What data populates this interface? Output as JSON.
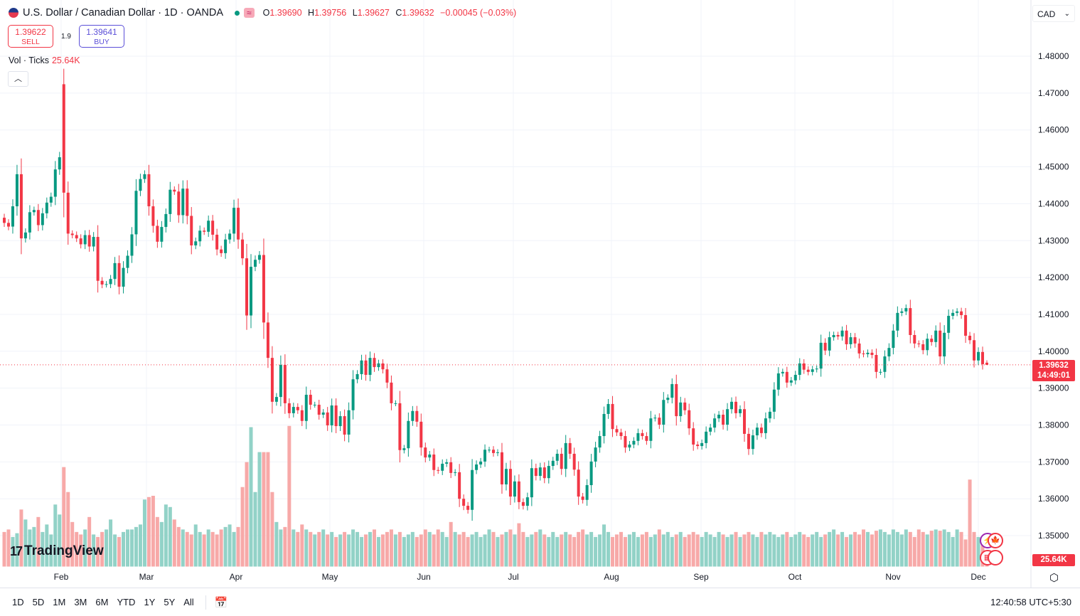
{
  "header": {
    "title": "U.S. Dollar / Canadian Dollar · 1D · OANDA",
    "status_icon": "market-open-dot",
    "delay_icon": "≈",
    "open_label": "O",
    "open": "1.39690",
    "high_label": "H",
    "high": "1.39756",
    "low_label": "L",
    "low": "1.39627",
    "close_label": "C",
    "close": "1.39632",
    "change": "−0.00045 (−0.03%)"
  },
  "trade": {
    "sell_price": "1.39622",
    "sell_label": "SELL",
    "spread": "1.9",
    "buy_price": "1.39641",
    "buy_label": "BUY"
  },
  "volume_legend": {
    "label": "Vol · Ticks",
    "value": "25.64K"
  },
  "currency": "CAD",
  "price_axis": {
    "ticks": [
      "1.48000",
      "1.47000",
      "1.46000",
      "1.45000",
      "1.44000",
      "1.43000",
      "1.42000",
      "1.41000",
      "1.40000",
      "1.39000",
      "1.38000",
      "1.37000",
      "1.36000",
      "1.35000"
    ],
    "last_price": "1.39632",
    "countdown": "14:49:01",
    "volume_tag": "25.64K"
  },
  "time_axis": [
    "Feb",
    "Mar",
    "Apr",
    "May",
    "Jun",
    "Jul",
    "Aug",
    "Sep",
    "Oct",
    "Nov",
    "Dec"
  ],
  "logo": "TradingView",
  "toolbar": {
    "ranges": [
      "1D",
      "5D",
      "1M",
      "3M",
      "6M",
      "YTD",
      "1Y",
      "5Y",
      "All"
    ],
    "clock": "12:40:58 UTC+5:30"
  },
  "colors": {
    "up": "#089981",
    "down": "#f23645",
    "up_volume": "#92d2c7",
    "down_volume": "#f7a9a8"
  },
  "chart_data": {
    "type": "candlestick",
    "interval": "1D",
    "symbol": "USDCAD",
    "ylim": [
      1.345,
      1.482
    ],
    "grid": true,
    "opens": {
      "0": 1.4362,
      "14": 1.4724
    },
    "close": [
      1.4348,
      1.4338,
      1.4393,
      1.448,
      1.4306,
      1.4322,
      1.4377,
      1.4383,
      1.4342,
      1.4374,
      1.4403,
      1.4419,
      1.4493,
      1.4526,
      1.443,
      1.4319,
      1.4315,
      1.4306,
      1.429,
      1.4315,
      1.4284,
      1.431,
      1.4191,
      1.4181,
      1.4182,
      1.4196,
      1.4239,
      1.4175,
      1.4226,
      1.4259,
      1.4317,
      1.4435,
      1.4467,
      1.448,
      1.4393,
      1.434,
      1.4297,
      1.4337,
      1.4372,
      1.4438,
      1.4433,
      1.4369,
      1.4441,
      1.4367,
      1.4287,
      1.4298,
      1.4327,
      1.4324,
      1.4354,
      1.4316,
      1.4276,
      1.4266,
      1.4303,
      1.4319,
      1.4389,
      1.4303,
      1.4252,
      1.4097,
      1.4229,
      1.4248,
      1.4261,
      1.4078,
      1.3982,
      1.3863,
      1.3876,
      1.3963,
      1.3859,
      1.3832,
      1.3849,
      1.384,
      1.3811,
      1.3882,
      1.3855,
      1.3855,
      1.3828,
      1.3834,
      1.3799,
      1.3853,
      1.3797,
      1.3824,
      1.3774,
      1.384,
      1.3924,
      1.3938,
      1.3975,
      1.3936,
      1.3982,
      1.3957,
      1.3967,
      1.3951,
      1.3915,
      1.3859,
      1.3859,
      1.3732,
      1.3737,
      1.3811,
      1.3838,
      1.3809,
      1.3739,
      1.3712,
      1.372,
      1.3678,
      1.3676,
      1.3695,
      1.3699,
      1.367,
      1.3672,
      1.36,
      1.3581,
      1.357,
      1.3678,
      1.3693,
      1.3701,
      1.3733,
      1.3733,
      1.3724,
      1.3726,
      1.3639,
      1.3681,
      1.3606,
      1.3647,
      1.3591,
      1.3581,
      1.3604,
      1.3683,
      1.3662,
      1.3685,
      1.3656,
      1.3689,
      1.3703,
      1.3722,
      1.3681,
      1.3751,
      1.3722,
      1.3679,
      1.3606,
      1.3597,
      1.3637,
      1.3701,
      1.3739,
      1.377,
      1.383,
      1.3857,
      1.3789,
      1.378,
      1.377,
      1.3739,
      1.3747,
      1.3757,
      1.3778,
      1.377,
      1.3757,
      1.3818,
      1.382,
      1.3801,
      1.3868,
      1.3874,
      1.3911,
      1.3824,
      1.3861,
      1.384,
      1.3791,
      1.3747,
      1.3743,
      1.3751,
      1.3782,
      1.3793,
      1.3818,
      1.3828,
      1.3801,
      1.3843,
      1.3863,
      1.3832,
      1.3843,
      1.3776,
      1.3735,
      1.3772,
      1.3793,
      1.3778,
      1.3818,
      1.3836,
      1.3896,
      1.394,
      1.3944,
      1.3915,
      1.3921,
      1.3936,
      1.3967,
      1.395,
      1.3944,
      1.3951,
      1.3953,
      1.4023,
      1.4002,
      1.4038,
      1.4044,
      1.404,
      1.4056,
      1.4019,
      1.4038,
      1.4021,
      1.3994,
      1.3992,
      1.3996,
      1.399,
      1.3944,
      1.3944,
      1.3986,
      1.4009,
      1.4056,
      1.4104,
      1.4108,
      1.4117,
      1.4044,
      1.4021,
      1.4019,
      1.4003,
      1.4034,
      1.4025,
      1.4056,
      1.3986,
      1.405,
      1.4096,
      1.4104,
      1.4108,
      1.4098,
      1.4042,
      1.403,
      1.3975,
      1.3998,
      1.3965,
      1.39632
    ],
    "volume_k": [
      140,
      150,
      120,
      135,
      230,
      190,
      150,
      160,
      200,
      140,
      170,
      130,
      250,
      210,
      400,
      300,
      180,
      140,
      130,
      150,
      200,
      130,
      120,
      140,
      150,
      190,
      130,
      120,
      140,
      150,
      150,
      160,
      170,
      270,
      280,
      285,
      200,
      180,
      250,
      240,
      190,
      160,
      150,
      140,
      130,
      170,
      140,
      130,
      150,
      140,
      130,
      150,
      160,
      170,
      140,
      160,
      320,
      420,
      560,
      300,
      460,
      460,
      460,
      300,
      180,
      150,
      160,
      565,
      150,
      140,
      170,
      150,
      140,
      130,
      140,
      150,
      130,
      140,
      120,
      130,
      140,
      130,
      150,
      140,
      120,
      130,
      140,
      150,
      120,
      130,
      140,
      150,
      130,
      140,
      120,
      130,
      140,
      120,
      130,
      150,
      140,
      130,
      150,
      140,
      120,
      180,
      140,
      130,
      140,
      120,
      130,
      140,
      120,
      130,
      150,
      140,
      120,
      130,
      140,
      150,
      130,
      175,
      140,
      120,
      130,
      140,
      150,
      130,
      120,
      140,
      120,
      130,
      140,
      130,
      120,
      140,
      150,
      130,
      140,
      120,
      130,
      170,
      140,
      120,
      130,
      140,
      120,
      130,
      140,
      120,
      130,
      140,
      120,
      130,
      150,
      130,
      140,
      120,
      130,
      140,
      120,
      130,
      140,
      130,
      120,
      140,
      130,
      120,
      140,
      130,
      120,
      130,
      140,
      120,
      130,
      140,
      130,
      120,
      140,
      130,
      140,
      130,
      120,
      130,
      140,
      120,
      130,
      140,
      130,
      120,
      130,
      140,
      120,
      130,
      140,
      150,
      130,
      140,
      120,
      130,
      140,
      130,
      150,
      140,
      130,
      145,
      150,
      140,
      130,
      150,
      140,
      130,
      150,
      140,
      120,
      150,
      140,
      130,
      145,
      150,
      145,
      150,
      140,
      120,
      150,
      140,
      110,
      350,
      140,
      120,
      90,
      25.64
    ]
  }
}
